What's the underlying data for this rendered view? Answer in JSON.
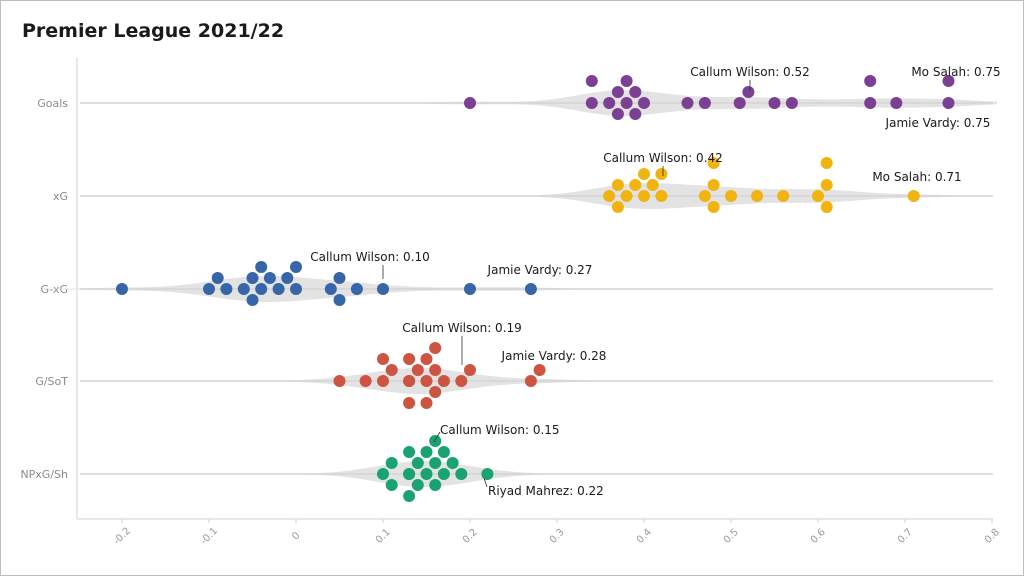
{
  "chart_data": {
    "type": "beeswarm-violin",
    "title": "Premier League 2021/22",
    "xlabel": "",
    "ylabel": "",
    "xlim": [
      -0.25,
      0.8
    ],
    "xticks": [
      -0.2,
      -0.1,
      0,
      0.1,
      0.2,
      0.3,
      0.4,
      0.5,
      0.6,
      0.7,
      0.8
    ],
    "xtick_labels": [
      "-0.2",
      "-0.1",
      "0",
      "0.1",
      "0.2",
      "0.3",
      "0.4",
      "0.5",
      "0.6",
      "0.7",
      "0.8"
    ],
    "categories": [
      "Goals",
      "xG",
      "G-xG",
      "G/SoT",
      "NPxG/Sh"
    ],
    "series": [
      {
        "name": "Goals",
        "color": "#7b3f94",
        "values": [
          0.2,
          0.34,
          0.34,
          0.36,
          0.37,
          0.37,
          0.38,
          0.38,
          0.39,
          0.39,
          0.4,
          0.45,
          0.47,
          0.51,
          0.52,
          0.55,
          0.57,
          0.66,
          0.66,
          0.69,
          0.75,
          0.75
        ]
      },
      {
        "name": "xG",
        "color": "#f0b30f",
        "values": [
          0.36,
          0.37,
          0.37,
          0.38,
          0.39,
          0.4,
          0.4,
          0.41,
          0.42,
          0.42,
          0.47,
          0.48,
          0.48,
          0.48,
          0.5,
          0.53,
          0.56,
          0.6,
          0.61,
          0.61,
          0.61,
          0.71
        ]
      },
      {
        "name": "G-xG",
        "color": "#3766a8",
        "values": [
          -0.2,
          -0.1,
          -0.09,
          -0.08,
          -0.06,
          -0.05,
          -0.05,
          -0.04,
          -0.04,
          -0.03,
          -0.02,
          -0.01,
          0.0,
          0.0,
          0.04,
          0.05,
          0.05,
          0.07,
          0.1,
          0.2,
          0.27
        ]
      },
      {
        "name": "G/SoT",
        "color": "#cc5440",
        "values": [
          0.05,
          0.08,
          0.1,
          0.1,
          0.11,
          0.13,
          0.13,
          0.13,
          0.13,
          0.14,
          0.15,
          0.15,
          0.15,
          0.16,
          0.16,
          0.16,
          0.17,
          0.19,
          0.2,
          0.27,
          0.28
        ]
      },
      {
        "name": "NPxG/Sh",
        "color": "#18a370",
        "values": [
          0.1,
          0.11,
          0.11,
          0.13,
          0.13,
          0.13,
          0.13,
          0.14,
          0.14,
          0.15,
          0.15,
          0.16,
          0.16,
          0.16,
          0.17,
          0.17,
          0.18,
          0.19,
          0.22
        ]
      }
    ],
    "annotations": [
      {
        "category": "Goals",
        "text": "Callum Wilson: 0.52",
        "value": 0.52
      },
      {
        "category": "Goals",
        "text": "Mo Salah: 0.75",
        "value": 0.75
      },
      {
        "category": "Goals",
        "text": "Jamie Vardy: 0.75",
        "value": 0.75
      },
      {
        "category": "xG",
        "text": "Callum Wilson: 0.42",
        "value": 0.42
      },
      {
        "category": "xG",
        "text": "Mo Salah: 0.71",
        "value": 0.71
      },
      {
        "category": "G-xG",
        "text": "Callum Wilson: 0.10",
        "value": 0.1
      },
      {
        "category": "G-xG",
        "text": "Jamie Vardy: 0.27",
        "value": 0.27
      },
      {
        "category": "G/SoT",
        "text": "Callum Wilson: 0.19",
        "value": 0.19
      },
      {
        "category": "G/SoT",
        "text": "Jamie Vardy: 0.28",
        "value": 0.28
      },
      {
        "category": "NPxG/Sh",
        "text": "Callum Wilson: 0.15",
        "value": 0.15
      },
      {
        "category": "NPxG/Sh",
        "text": "Riyad Mahrez: 0.22",
        "value": 0.22
      }
    ]
  }
}
